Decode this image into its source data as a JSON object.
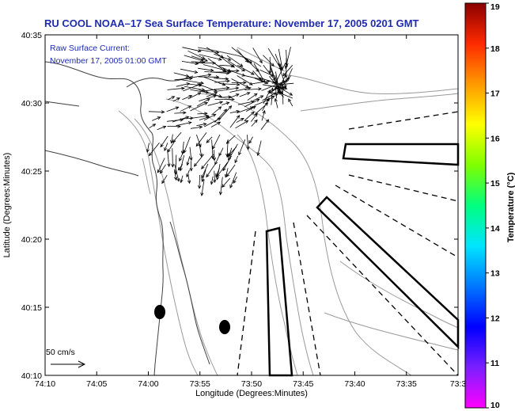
{
  "title": "RU COOL  NOAA–17  Sea Surface Temperature:  November 17, 2005 0201 GMT",
  "current_legend": {
    "line1": "Raw Surface Current:",
    "line2": "November 17, 2005 01:00 GMT"
  },
  "scale_label": "50 cm/s",
  "axes": {
    "xlabel": "Longitude (Degrees:Minutes)",
    "ylabel": "Latitude (Degrees:Minutes)",
    "xticks": [
      "74:10",
      "74:05",
      "74:00",
      "73:55",
      "73:50",
      "73:45",
      "73:40",
      "73:35",
      "73:3"
    ],
    "yticks": [
      "40:35",
      "40:30",
      "40:25",
      "40:20",
      "40:15",
      "40:10"
    ]
  },
  "colorbar": {
    "title": "Temperature (°C)",
    "min": 10,
    "max": 19,
    "labels": [
      "19",
      "18",
      "17",
      "16",
      "15",
      "14",
      "13",
      "12",
      "11",
      "10"
    ],
    "colors": [
      "#ff00ff",
      "#7a1fff",
      "#0000ff",
      "#0077ff",
      "#00e5ff",
      "#00ff7f",
      "#7fff00",
      "#ffff00",
      "#ff9a00",
      "#ff2a00",
      "#8b0000"
    ]
  },
  "colors": {
    "title": "#1f2bb0",
    "coast": "#404040",
    "contour": "#9a9a9a"
  }
}
